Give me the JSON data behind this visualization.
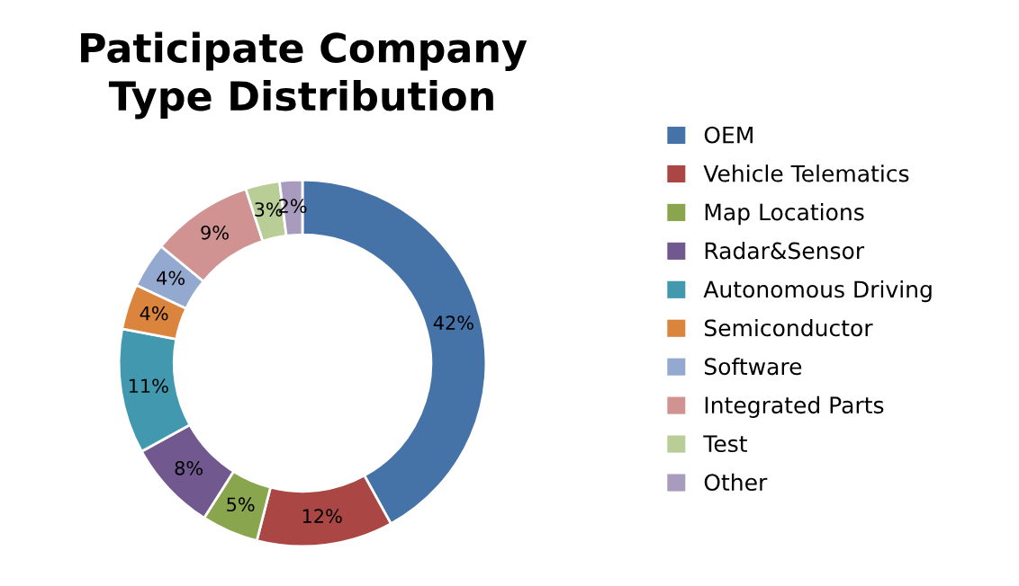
{
  "chart_data": {
    "type": "donut",
    "title": "Paticipate Company\nType Distribution",
    "categories": [
      "OEM",
      "Vehicle Telematics",
      "Map Locations",
      "Radar&Sensor",
      "Autonomous Driving",
      "Semiconductor",
      "Software",
      "Integrated Parts",
      "Test",
      "Other"
    ],
    "values": [
      42,
      12,
      5,
      8,
      11,
      4,
      4,
      9,
      3,
      2
    ],
    "colors": [
      "#4572a7",
      "#aa4643",
      "#89a54e",
      "#71588f",
      "#4198af",
      "#db843d",
      "#93a9cf",
      "#d19392",
      "#b9cd96",
      "#a99bbd"
    ],
    "value_labels": [
      "42%",
      "12%",
      "5%",
      "8%",
      "11%",
      "4%",
      "4%",
      "9%",
      "3%",
      "2%"
    ],
    "legend": "right"
  }
}
